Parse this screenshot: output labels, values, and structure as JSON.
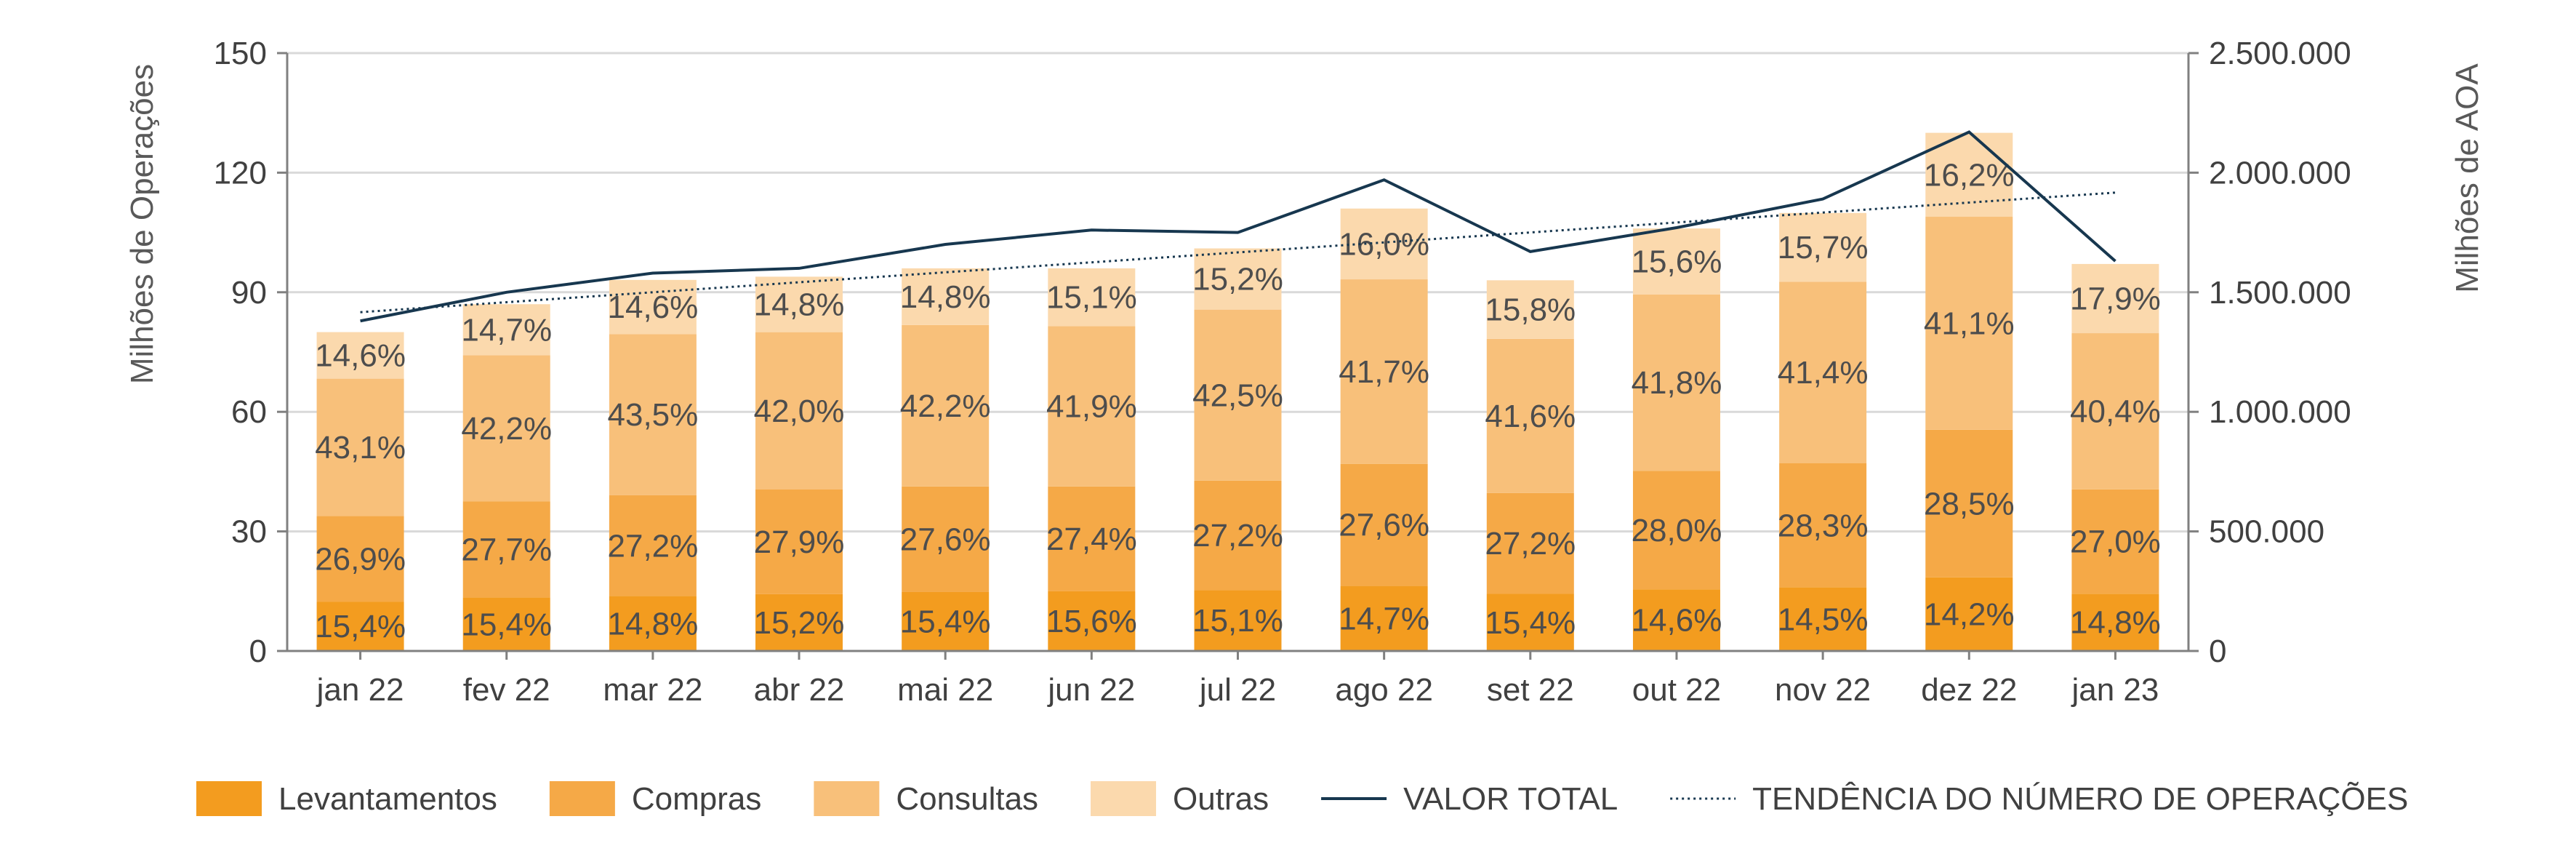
{
  "chart_data": {
    "type": "bar",
    "stacked": true,
    "categories": [
      "jan 22",
      "fev 22",
      "mar 22",
      "abr 22",
      "mai 22",
      "jun 22",
      "jul 22",
      "ago 22",
      "set 22",
      "out 22",
      "nov 22",
      "dez 22",
      "jan 23"
    ],
    "y_left": {
      "label": "Milhões de Operações",
      "ticks": [
        "0",
        "30",
        "60",
        "90",
        "120",
        "150"
      ],
      "range": [
        0,
        150
      ]
    },
    "y_right": {
      "label": "Milhões de AOA",
      "ticks": [
        "0",
        "500.000",
        "1.000.000",
        "1.500.000",
        "2.000.000",
        "2.500.000"
      ],
      "range": [
        0,
        2500000
      ]
    },
    "grid": true,
    "legend_position": "bottom",
    "totals": [
      80,
      87,
      93,
      94,
      96,
      96,
      101,
      111,
      93,
      106,
      110,
      130,
      97
    ],
    "series": [
      {
        "name": "Levantamentos",
        "color": "#f39c1f",
        "shares": [
          15.4,
          15.4,
          14.8,
          15.2,
          15.4,
          15.6,
          15.1,
          14.7,
          15.4,
          14.6,
          14.5,
          14.2,
          14.8
        ],
        "labels": [
          "15,4%",
          "15,4%",
          "14,8%",
          "15,2%",
          "15,4%",
          "15,6%",
          "15,1%",
          "14,7%",
          "15,4%",
          "14,6%",
          "14,5%",
          "14,2%",
          "14,8%"
        ]
      },
      {
        "name": "Compras",
        "color": "#f5a947",
        "shares": [
          26.9,
          27.7,
          27.2,
          27.9,
          27.6,
          27.4,
          27.2,
          27.6,
          27.2,
          28.0,
          28.3,
          28.5,
          27.0
        ],
        "labels": [
          "26,9%",
          "27,7%",
          "27,2%",
          "27,9%",
          "27,6%",
          "27,4%",
          "27,2%",
          "27,6%",
          "27,2%",
          "28,0%",
          "28,3%",
          "28,5%",
          "27,0%"
        ]
      },
      {
        "name": "Consultas",
        "color": "#f8c07a",
        "shares": [
          43.1,
          42.2,
          43.5,
          42.0,
          42.2,
          41.9,
          42.5,
          41.7,
          41.6,
          41.8,
          41.4,
          41.1,
          40.4
        ],
        "labels": [
          "43,1%",
          "42,2%",
          "43,5%",
          "42,0%",
          "42,2%",
          "41,9%",
          "42,5%",
          "41,7%",
          "41,6%",
          "41,8%",
          "41,4%",
          "41,1%",
          "40,4%"
        ]
      },
      {
        "name": "Outras",
        "color": "#fbd9ad",
        "shares": [
          14.6,
          14.7,
          14.6,
          14.8,
          14.8,
          15.1,
          15.2,
          16.0,
          15.8,
          15.6,
          15.7,
          16.2,
          17.9
        ],
        "labels": [
          "14,6%",
          "14,7%",
          "14,6%",
          "14,8%",
          "14,8%",
          "15,1%",
          "15,2%",
          "16,0%",
          "15,8%",
          "15,6%",
          "15,7%",
          "16,2%",
          "17,9%"
        ]
      }
    ],
    "line_series": [
      {
        "name": "VALOR TOTAL",
        "color": "#17374f",
        "axis": "right",
        "style": "solid",
        "values": [
          1380000,
          1500000,
          1580000,
          1600000,
          1700000,
          1760000,
          1750000,
          1970000,
          1670000,
          1770000,
          1890000,
          2170000,
          1630000
        ]
      },
      {
        "name": "TENDÊNCIA DO NÚMERO DE OPERAÇÕES",
        "color": "#17374f",
        "axis": "left",
        "style": "dotted",
        "values": [
          85,
          87.5,
          90,
          92.5,
          95,
          97.5,
          100,
          102.5,
          105,
          107.5,
          110,
          112.5,
          115
        ]
      }
    ]
  }
}
